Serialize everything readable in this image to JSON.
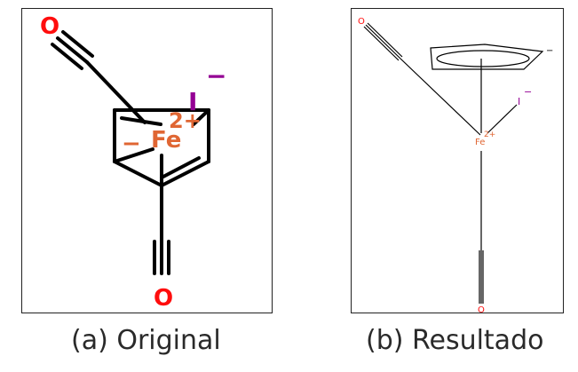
{
  "panel_a": {
    "caption": "(a) Original",
    "atoms": {
      "o_top": "O",
      "o_bottom": "O",
      "iodine": "I",
      "iodine_charge": "−",
      "iron": "Fe",
      "iron_charge": "2+",
      "ring_charge": "−"
    }
  },
  "panel_b": {
    "caption": "(b) Resultado",
    "atoms": {
      "o_top": "O",
      "o_bottom": "O",
      "iodine": "I",
      "iodine_charge": "−",
      "iron": "Fe",
      "iron_charge": "2+",
      "ring_charge": "−"
    }
  },
  "colors": {
    "oxygen": "#ff0d0d",
    "iron": "#e06633",
    "iodine": "#940094",
    "bond": "#000000"
  }
}
